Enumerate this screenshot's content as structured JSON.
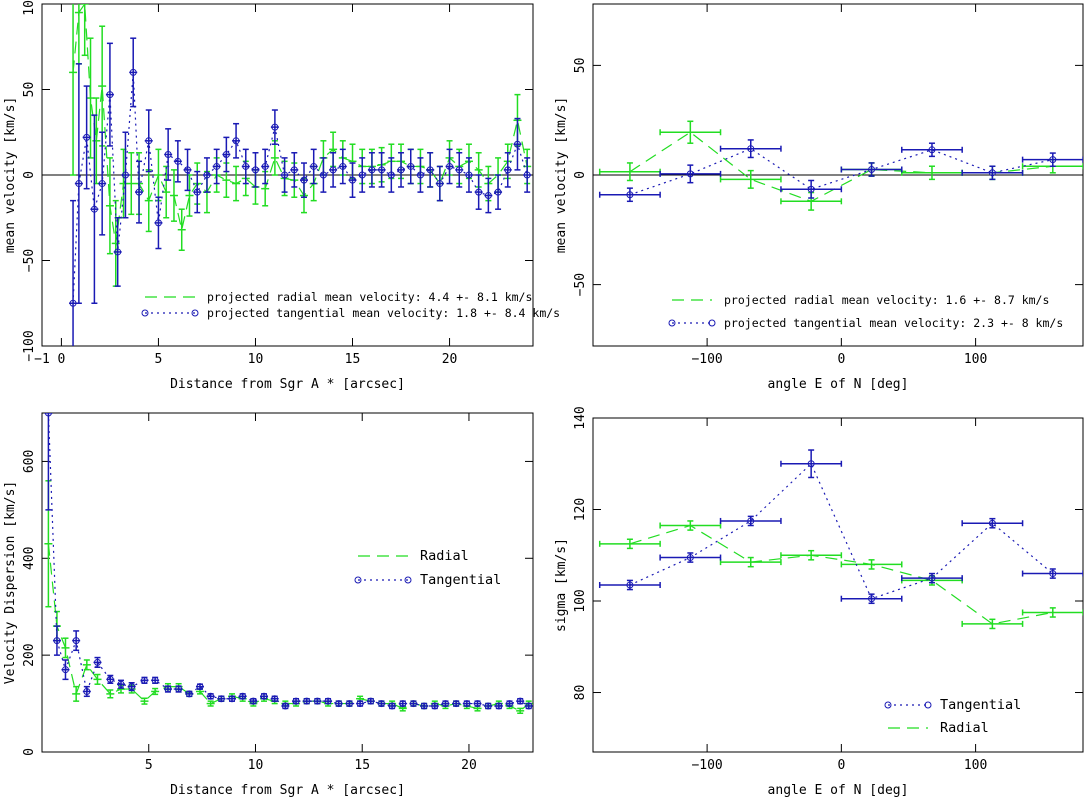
{
  "colors": {
    "radial": "#22dd22",
    "tangential": "#1a1ab4",
    "axis": "#000000"
  },
  "chart_data": [
    {
      "type": "scatter",
      "xlabel": "Distance from Sgr A * [arcsec]",
      "ylabel": "mean velocity [km/s]",
      "xlim": [
        -1,
        24.3
      ],
      "ylim": [
        -100,
        100
      ],
      "xticks": [
        -1,
        0,
        5,
        10,
        15,
        20
      ],
      "xtick_labels": [
        "−1",
        "0",
        "5",
        "10",
        "15",
        "20"
      ],
      "yticks": [
        -100,
        -50,
        0,
        50,
        100
      ],
      "ytick_labels": [
        "−100",
        "−50",
        "0",
        "50",
        "100"
      ],
      "zero_line": true,
      "legend": [
        {
          "series": 0,
          "label": "projected radial mean velocity: 4.4 +- 8.1 km/s"
        },
        {
          "series": 1,
          "label": "projected tangential mean velocity: 1.8 +- 8.4 km/s"
        }
      ],
      "series": [
        {
          "id": "radial",
          "style": "dashed",
          "x": [
            0.6,
            0.9,
            1.2,
            1.5,
            1.8,
            2.1,
            2.5,
            2.8,
            3.2,
            3.6,
            4.0,
            4.5,
            5.0,
            5.4,
            5.8,
            6.2,
            6.6,
            7.0,
            7.5,
            8.0,
            8.5,
            9.0,
            9.5,
            10.0,
            10.5,
            11.0,
            11.5,
            12.0,
            12.5,
            13.0,
            13.5,
            14.0,
            14.5,
            15.0,
            15.5,
            16.0,
            16.5,
            17.0,
            17.5,
            18.0,
            18.5,
            19.0,
            19.5,
            20.0,
            20.5,
            21.0,
            21.5,
            22.0,
            22.5,
            23.0,
            23.5,
            24.0
          ],
          "y": [
            60,
            95,
            100,
            45,
            20,
            52,
            -18,
            -40,
            -5,
            -5,
            -5,
            -15,
            0,
            -10,
            -12,
            -32,
            -12,
            -5,
            -10,
            0,
            -3,
            -5,
            -2,
            -7,
            -8,
            10,
            -2,
            -3,
            -12,
            -5,
            10,
            15,
            10,
            8,
            5,
            5,
            6,
            8,
            8,
            5,
            5,
            3,
            -5,
            10,
            5,
            8,
            3,
            -5,
            0,
            8,
            32,
            5
          ],
          "err": [
            60,
            30,
            30,
            35,
            25,
            35,
            28,
            25,
            20,
            18,
            18,
            18,
            15,
            15,
            15,
            12,
            12,
            12,
            12,
            10,
            10,
            10,
            10,
            10,
            10,
            10,
            10,
            10,
            10,
            10,
            10,
            10,
            10,
            10,
            10,
            10,
            10,
            10,
            10,
            10,
            10,
            10,
            10,
            10,
            10,
            10,
            10,
            10,
            10,
            10,
            15,
            10
          ]
        },
        {
          "id": "tangential",
          "style": "dotted",
          "x": [
            0.6,
            0.9,
            1.3,
            1.7,
            2.1,
            2.5,
            2.9,
            3.3,
            3.7,
            4.0,
            4.5,
            5.0,
            5.5,
            6.0,
            6.5,
            7.0,
            7.5,
            8.0,
            8.5,
            9.0,
            9.5,
            10.0,
            10.5,
            11.0,
            11.5,
            12.0,
            12.5,
            13.0,
            13.5,
            14.0,
            14.5,
            15.0,
            15.5,
            16.0,
            16.5,
            17.0,
            17.5,
            18.0,
            18.5,
            19.0,
            19.5,
            20.0,
            20.5,
            21.0,
            21.5,
            22.0,
            22.5,
            23.0,
            23.5,
            24.0
          ],
          "y": [
            -75,
            -5,
            22,
            -20,
            -5,
            47,
            -45,
            0,
            60,
            -10,
            20,
            -28,
            12,
            8,
            3,
            -10,
            0,
            5,
            12,
            20,
            5,
            3,
            5,
            28,
            0,
            3,
            -3,
            5,
            0,
            3,
            5,
            -3,
            0,
            3,
            3,
            0,
            3,
            5,
            0,
            3,
            -5,
            5,
            3,
            0,
            -10,
            -12,
            -10,
            3,
            18,
            0
          ],
          "err": [
            60,
            70,
            30,
            55,
            30,
            30,
            20,
            25,
            20,
            18,
            18,
            15,
            15,
            12,
            12,
            12,
            10,
            10,
            10,
            10,
            10,
            10,
            10,
            10,
            10,
            10,
            10,
            10,
            10,
            10,
            10,
            10,
            10,
            10,
            10,
            10,
            10,
            10,
            10,
            10,
            10,
            10,
            10,
            10,
            10,
            10,
            10,
            10,
            15,
            10
          ]
        }
      ]
    },
    {
      "type": "line",
      "xlabel": "angle E of N [deg]",
      "ylabel": "mean velocity [km/s]",
      "xlim": [
        -185,
        180
      ],
      "ylim": [
        -78,
        78
      ],
      "xticks": [
        -100,
        0,
        100
      ],
      "xtick_labels": [
        "−100",
        "0",
        "100"
      ],
      "yticks": [
        -50,
        0,
        50
      ],
      "ytick_labels": [
        "−50",
        "0",
        "50"
      ],
      "zero_line": true,
      "legend": [
        {
          "series": 0,
          "label": "projected radial mean velocity: 1.6 +- 8.7 km/s"
        },
        {
          "series": 1,
          "label": "projected tangential mean velocity: 2.3 +- 8 km/s"
        }
      ],
      "series": [
        {
          "id": "radial",
          "style": "dashed",
          "xerr": 22.5,
          "x": [
            -157.5,
            -112.5,
            -67.5,
            -22.5,
            22.5,
            67.5,
            112.5,
            157.5
          ],
          "y": [
            1.5,
            19.5,
            -2,
            -12,
            2.5,
            1,
            1,
            4
          ],
          "err": [
            4,
            5,
            4,
            4,
            3,
            3,
            3,
            3
          ]
        },
        {
          "id": "tangential",
          "style": "dotted",
          "xerr": 22.5,
          "x": [
            -157.5,
            -112.5,
            -67.5,
            -22.5,
            22.5,
            67.5,
            112.5,
            157.5
          ],
          "y": [
            -9,
            0.5,
            12,
            -6.5,
            2.5,
            11.5,
            1,
            7
          ],
          "err": [
            3,
            4,
            4,
            4,
            3,
            3,
            3,
            3
          ]
        }
      ]
    },
    {
      "type": "scatter",
      "xlabel": "Distance from Sgr A * [arcsec]",
      "ylabel": "Velocity Dispersion [km/s]",
      "xlim": [
        0,
        23
      ],
      "ylim": [
        0,
        700
      ],
      "xticks": [
        5,
        10,
        15,
        20
      ],
      "xtick_labels": [
        "5",
        "10",
        "15",
        "20"
      ],
      "yticks": [
        0,
        200,
        400,
        600
      ],
      "ytick_labels": [
        "0",
        "200",
        "400",
        "600"
      ],
      "zero_line": false,
      "legend": [
        {
          "series": 0,
          "label": "Radial"
        },
        {
          "series": 1,
          "label": "Tangential"
        }
      ],
      "series": [
        {
          "id": "radial",
          "style": "dashed",
          "x": [
            0.3,
            0.7,
            1.1,
            1.6,
            2.1,
            2.6,
            3.2,
            3.7,
            4.2,
            4.8,
            5.3,
            5.9,
            6.4,
            6.9,
            7.4,
            7.9,
            8.4,
            8.9,
            9.4,
            9.9,
            10.4,
            10.9,
            11.4,
            11.9,
            12.4,
            12.9,
            13.4,
            13.9,
            14.4,
            14.9,
            15.4,
            15.9,
            16.4,
            16.9,
            17.4,
            17.9,
            18.4,
            18.9,
            19.4,
            19.9,
            20.4,
            20.9,
            21.4,
            21.9,
            22.4,
            22.8
          ],
          "y": [
            430,
            260,
            215,
            120,
            180,
            150,
            120,
            130,
            130,
            105,
            125,
            135,
            135,
            120,
            125,
            100,
            110,
            115,
            110,
            100,
            110,
            105,
            100,
            100,
            105,
            105,
            100,
            100,
            100,
            110,
            105,
            100,
            100,
            90,
            100,
            95,
            100,
            95,
            100,
            95,
            90,
            95,
            100,
            95,
            85,
            100
          ],
          "err": [
            130,
            30,
            20,
            15,
            10,
            10,
            8,
            8,
            8,
            6,
            6,
            6,
            6,
            5,
            5,
            5,
            5,
            5,
            5,
            5,
            5,
            5,
            5,
            5,
            5,
            5,
            5,
            5,
            5,
            5,
            5,
            5,
            5,
            5,
            5,
            5,
            5,
            5,
            5,
            5,
            5,
            5,
            5,
            5,
            5,
            5
          ]
        },
        {
          "id": "tangential",
          "style": "dotted",
          "x": [
            0.3,
            0.7,
            1.1,
            1.6,
            2.1,
            2.6,
            3.2,
            3.7,
            4.2,
            4.8,
            5.3,
            5.9,
            6.4,
            6.9,
            7.4,
            7.9,
            8.4,
            8.9,
            9.4,
            9.9,
            10.4,
            10.9,
            11.4,
            11.9,
            12.4,
            12.9,
            13.4,
            13.9,
            14.4,
            14.9,
            15.4,
            15.9,
            16.4,
            16.9,
            17.4,
            17.9,
            18.4,
            18.9,
            19.4,
            19.9,
            20.4,
            20.9,
            21.4,
            21.9,
            22.4,
            22.8
          ],
          "y": [
            700,
            230,
            170,
            230,
            125,
            185,
            150,
            140,
            135,
            148,
            148,
            130,
            130,
            120,
            135,
            115,
            110,
            110,
            115,
            105,
            115,
            110,
            95,
            105,
            105,
            105,
            105,
            100,
            100,
            100,
            105,
            100,
            95,
            100,
            100,
            95,
            95,
            100,
            100,
            100,
            100,
            95,
            95,
            100,
            105,
            95
          ],
          "err": [
            200,
            30,
            20,
            20,
            10,
            10,
            8,
            8,
            8,
            6,
            6,
            6,
            6,
            5,
            5,
            5,
            5,
            5,
            5,
            5,
            5,
            5,
            5,
            5,
            5,
            5,
            5,
            5,
            5,
            5,
            5,
            5,
            5,
            5,
            5,
            5,
            5,
            5,
            5,
            5,
            5,
            5,
            5,
            5,
            5,
            5
          ]
        }
      ]
    },
    {
      "type": "line",
      "xlabel": "angle E of N [deg]",
      "ylabel": "sigma [km/s]",
      "xlim": [
        -185,
        180
      ],
      "ylim": [
        67,
        140
      ],
      "xticks": [
        -100,
        0,
        100
      ],
      "xtick_labels": [
        "−100",
        "0",
        "100"
      ],
      "yticks": [
        80,
        100,
        120,
        140
      ],
      "ytick_labels": [
        "80",
        "100",
        "120",
        "140"
      ],
      "zero_line": false,
      "legend": [
        {
          "series": 1,
          "label": "Tangential"
        },
        {
          "series": 0,
          "label": "Radial"
        }
      ],
      "series": [
        {
          "id": "radial",
          "style": "dashed",
          "xerr": 22.5,
          "x": [
            -157.5,
            -112.5,
            -67.5,
            -22.5,
            22.5,
            67.5,
            112.5,
            157.5
          ],
          "y": [
            112.5,
            116.5,
            108.5,
            110,
            108,
            104.5,
            95,
            97.5
          ],
          "err": [
            1,
            1,
            1,
            1,
            1,
            1,
            1,
            1
          ]
        },
        {
          "id": "tangential",
          "style": "dotted",
          "xerr": 22.5,
          "x": [
            -157.5,
            -112.5,
            -67.5,
            -22.5,
            22.5,
            67.5,
            112.5,
            157.5
          ],
          "y": [
            103.5,
            109.5,
            117.5,
            130,
            100.5,
            105,
            117,
            106
          ],
          "err": [
            1,
            1,
            1,
            3,
            1,
            1,
            1,
            1
          ]
        }
      ]
    }
  ]
}
